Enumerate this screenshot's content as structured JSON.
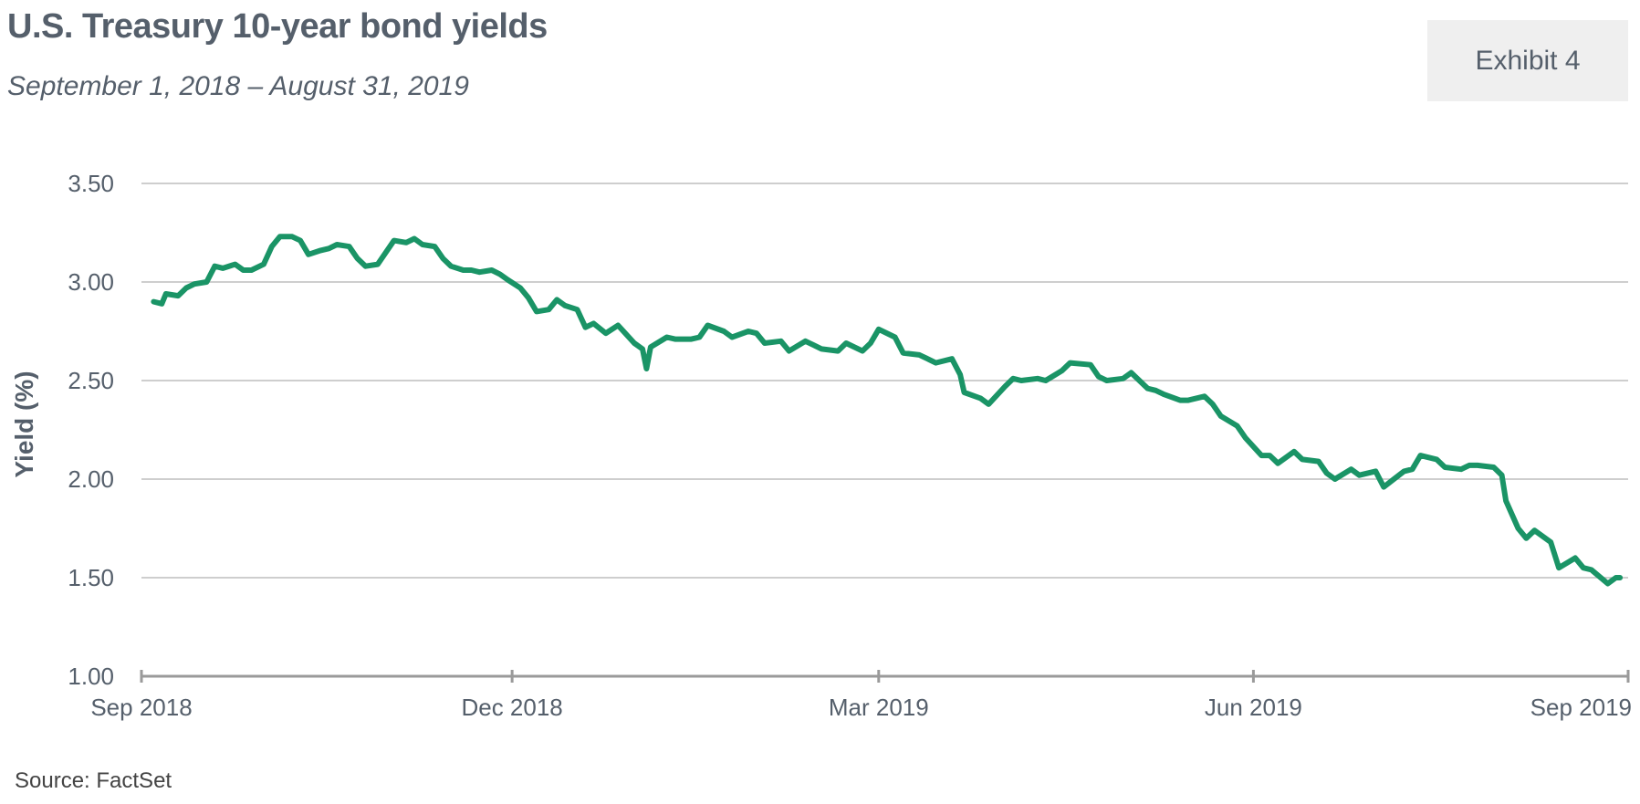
{
  "header": {
    "title": "U.S. Treasury 10-year bond yields",
    "subtitle": "September  1, 2018 – August  31, 2019",
    "exhibit_label": "Exhibit 4"
  },
  "footer": {
    "source": "Source: FactSet"
  },
  "colors": {
    "line": "#1a9466",
    "grid": "#bdbdbd",
    "axis": "#9a9a9a",
    "text": "#555f6b"
  },
  "chart_data": {
    "type": "line",
    "title": "U.S. Treasury 10-year bond yields",
    "ylabel": "Yield (%)",
    "xlabel": "",
    "ylim": [
      1.0,
      3.5
    ],
    "yticks": [
      "1.00",
      "1.50",
      "2.00",
      "2.50",
      "3.00",
      "3.50"
    ],
    "xticks": [
      {
        "date": "2018-09-01",
        "label": "Sep 2018"
      },
      {
        "date": "2018-12-01",
        "label": "Dec 2018"
      },
      {
        "date": "2019-03-01",
        "label": "Mar 2019"
      },
      {
        "date": "2019-06-01",
        "label": "Jun 2019"
      },
      {
        "date": "2019-09-01",
        "label": "Sep 2019"
      }
    ],
    "xlim": [
      "2018-09-01",
      "2019-09-01"
    ],
    "grid": true,
    "series": [
      {
        "x": [
          "2018-09-04",
          "2018-09-06",
          "2018-09-07",
          "2018-09-10",
          "2018-09-12",
          "2018-09-14",
          "2018-09-17",
          "2018-09-19",
          "2018-09-21",
          "2018-09-24",
          "2018-09-26",
          "2018-09-28",
          "2018-10-01",
          "2018-10-03",
          "2018-10-05",
          "2018-10-08",
          "2018-10-10",
          "2018-10-12",
          "2018-10-15",
          "2018-10-17",
          "2018-10-19",
          "2018-10-22",
          "2018-10-24",
          "2018-10-26",
          "2018-10-29",
          "2018-10-31",
          "2018-11-02",
          "2018-11-05",
          "2018-11-07",
          "2018-11-09",
          "2018-11-12",
          "2018-11-14",
          "2018-11-16",
          "2018-11-19",
          "2018-11-21",
          "2018-11-23",
          "2018-11-26",
          "2018-11-28",
          "2018-11-30",
          "2018-12-03",
          "2018-12-05",
          "2018-12-07",
          "2018-12-10",
          "2018-12-12",
          "2018-12-14",
          "2018-12-17",
          "2018-12-19",
          "2018-12-21",
          "2018-12-24",
          "2018-12-27",
          "2018-12-31",
          "2019-01-02",
          "2019-01-03",
          "2019-01-04",
          "2019-01-08",
          "2019-01-10",
          "2019-01-14",
          "2019-01-16",
          "2019-01-18",
          "2019-01-22",
          "2019-01-24",
          "2019-01-28",
          "2019-01-30",
          "2019-02-01",
          "2019-02-05",
          "2019-02-07",
          "2019-02-11",
          "2019-02-13",
          "2019-02-15",
          "2019-02-19",
          "2019-02-21",
          "2019-02-25",
          "2019-02-27",
          "2019-03-01",
          "2019-03-05",
          "2019-03-07",
          "2019-03-11",
          "2019-03-13",
          "2019-03-15",
          "2019-03-19",
          "2019-03-21",
          "2019-03-22",
          "2019-03-26",
          "2019-03-28",
          "2019-04-01",
          "2019-04-03",
          "2019-04-05",
          "2019-04-09",
          "2019-04-11",
          "2019-04-15",
          "2019-04-17",
          "2019-04-22",
          "2019-04-24",
          "2019-04-26",
          "2019-04-30",
          "2019-05-02",
          "2019-05-06",
          "2019-05-08",
          "2019-05-10",
          "2019-05-14",
          "2019-05-16",
          "2019-05-20",
          "2019-05-22",
          "2019-05-24",
          "2019-05-28",
          "2019-05-30",
          "2019-06-03",
          "2019-06-05",
          "2019-06-07",
          "2019-06-11",
          "2019-06-13",
          "2019-06-17",
          "2019-06-19",
          "2019-06-21",
          "2019-06-25",
          "2019-06-27",
          "2019-07-01",
          "2019-07-03",
          "2019-07-08",
          "2019-07-10",
          "2019-07-12",
          "2019-07-16",
          "2019-07-18",
          "2019-07-22",
          "2019-07-24",
          "2019-07-26",
          "2019-07-30",
          "2019-08-01",
          "2019-08-02",
          "2019-08-05",
          "2019-08-07",
          "2019-08-09",
          "2019-08-13",
          "2019-08-15",
          "2019-08-19",
          "2019-08-21",
          "2019-08-23",
          "2019-08-27",
          "2019-08-29",
          "2019-08-30"
        ],
        "values": [
          2.9,
          2.89,
          2.94,
          2.93,
          2.97,
          2.99,
          3.0,
          3.08,
          3.07,
          3.09,
          3.06,
          3.06,
          3.09,
          3.18,
          3.23,
          3.23,
          3.21,
          3.14,
          3.16,
          3.17,
          3.19,
          3.18,
          3.12,
          3.08,
          3.09,
          3.15,
          3.21,
          3.2,
          3.22,
          3.19,
          3.18,
          3.12,
          3.08,
          3.06,
          3.06,
          3.05,
          3.06,
          3.04,
          3.01,
          2.97,
          2.92,
          2.85,
          2.86,
          2.91,
          2.88,
          2.86,
          2.77,
          2.79,
          2.74,
          2.78,
          2.69,
          2.66,
          2.56,
          2.67,
          2.72,
          2.71,
          2.71,
          2.72,
          2.78,
          2.75,
          2.72,
          2.75,
          2.74,
          2.69,
          2.7,
          2.65,
          2.7,
          2.68,
          2.66,
          2.65,
          2.69,
          2.65,
          2.69,
          2.76,
          2.72,
          2.64,
          2.63,
          2.61,
          2.59,
          2.61,
          2.53,
          2.44,
          2.41,
          2.38,
          2.47,
          2.51,
          2.5,
          2.51,
          2.5,
          2.55,
          2.59,
          2.58,
          2.52,
          2.5,
          2.51,
          2.54,
          2.46,
          2.45,
          2.43,
          2.4,
          2.4,
          2.42,
          2.38,
          2.32,
          2.27,
          2.21,
          2.12,
          2.12,
          2.08,
          2.14,
          2.1,
          2.09,
          2.03,
          2.0,
          2.05,
          2.02,
          2.04,
          1.96,
          2.04,
          2.05,
          2.12,
          2.1,
          2.06,
          2.05,
          2.07,
          2.07,
          2.06,
          2.02,
          1.89,
          1.75,
          1.7,
          1.74,
          1.68,
          1.55,
          1.6,
          1.55,
          1.54,
          1.47,
          1.5,
          1.5
        ]
      }
    ]
  }
}
